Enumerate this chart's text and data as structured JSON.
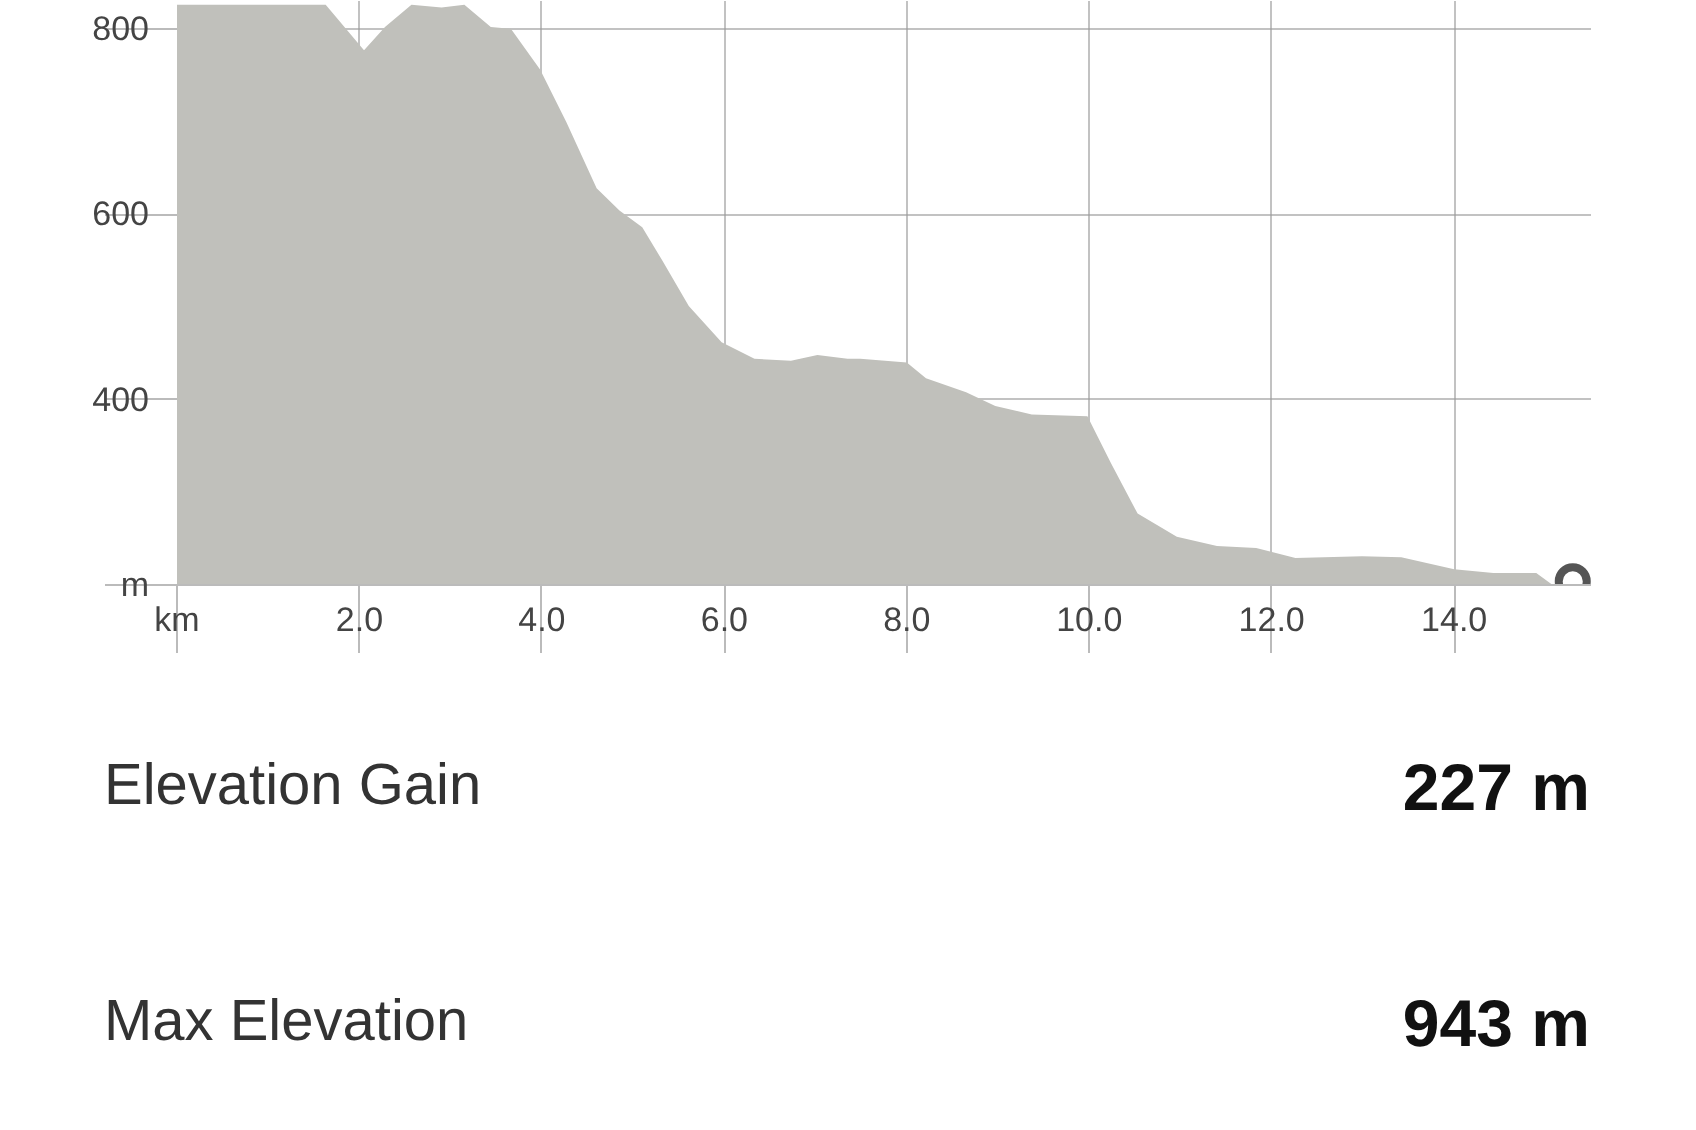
{
  "chart_data": {
    "type": "area",
    "x": [
      0,
      1.63,
      2.05,
      2.28,
      2.57,
      2.9,
      3.15,
      3.44,
      3.66,
      3.98,
      4.27,
      4.6,
      4.85,
      5.1,
      5.32,
      5.61,
      5.97,
      6.33,
      6.73,
      7.02,
      7.35,
      7.49,
      8.0,
      8.21,
      8.65,
      8.97,
      9.37,
      9.98,
      10.24,
      10.53,
      10.96,
      11.4,
      11.83,
      12.26,
      12.99,
      13.42,
      14.0,
      14.43,
      14.9,
      15.08
    ],
    "series": [
      {
        "color": "#c0c0bb",
        "values": [
          826,
          826,
          777,
          802,
          826,
          823,
          826,
          802,
          800,
          756,
          699,
          628,
          604,
          586,
          550,
          501,
          462,
          444,
          442,
          448,
          444,
          444,
          440,
          423,
          408,
          393,
          384,
          382,
          331,
          277,
          252,
          242,
          240,
          229,
          231,
          230,
          217,
          213,
          213,
          200
        ]
      },
      {
        "type": "scatter",
        "color": "#555555",
        "marker": "circle",
        "x": [
          15.3
        ],
        "values": [
          204
        ]
      }
    ],
    "xlim": [
      0,
      15.5
    ],
    "ylim": [
      200,
      830
    ],
    "xticks": [
      {
        "value": 0,
        "label": "km"
      },
      {
        "value": 2,
        "label": "2.0"
      },
      {
        "value": 4,
        "label": "4.0"
      },
      {
        "value": 6,
        "label": "6.0"
      },
      {
        "value": 8,
        "label": "8.0"
      },
      {
        "value": 10,
        "label": "10.0"
      },
      {
        "value": 12,
        "label": "12.0"
      },
      {
        "value": 14,
        "label": "14.0"
      }
    ],
    "yticks": [
      {
        "value": 200,
        "label": "m"
      },
      400,
      600,
      800
    ],
    "grid": true,
    "annotations": [
      "Elevation Gain",
      "227 m",
      "Max Elevation",
      "943 m"
    ]
  }
}
